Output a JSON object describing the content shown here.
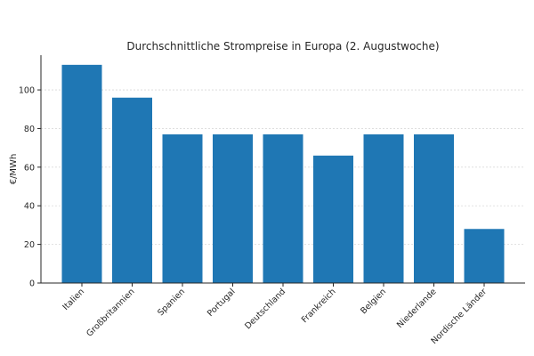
{
  "chart_data": {
    "type": "bar",
    "title": "Durchschnittliche Strompreise in Europa (2. Augustwoche)",
    "xlabel": "",
    "ylabel": "€/MWh",
    "categories": [
      "Italien",
      "Großbritannien",
      "Spanien",
      "Portugal",
      "Deutschland",
      "Frankreich",
      "Belgien",
      "Niederlande",
      "Nordische Länder"
    ],
    "values": [
      113,
      96,
      77,
      77,
      77,
      66,
      77,
      77,
      28
    ],
    "ylim": [
      0,
      118
    ],
    "yticks": [
      0,
      20,
      40,
      60,
      80,
      100
    ],
    "grid": true,
    "bar_color": "#1f77b4"
  }
}
